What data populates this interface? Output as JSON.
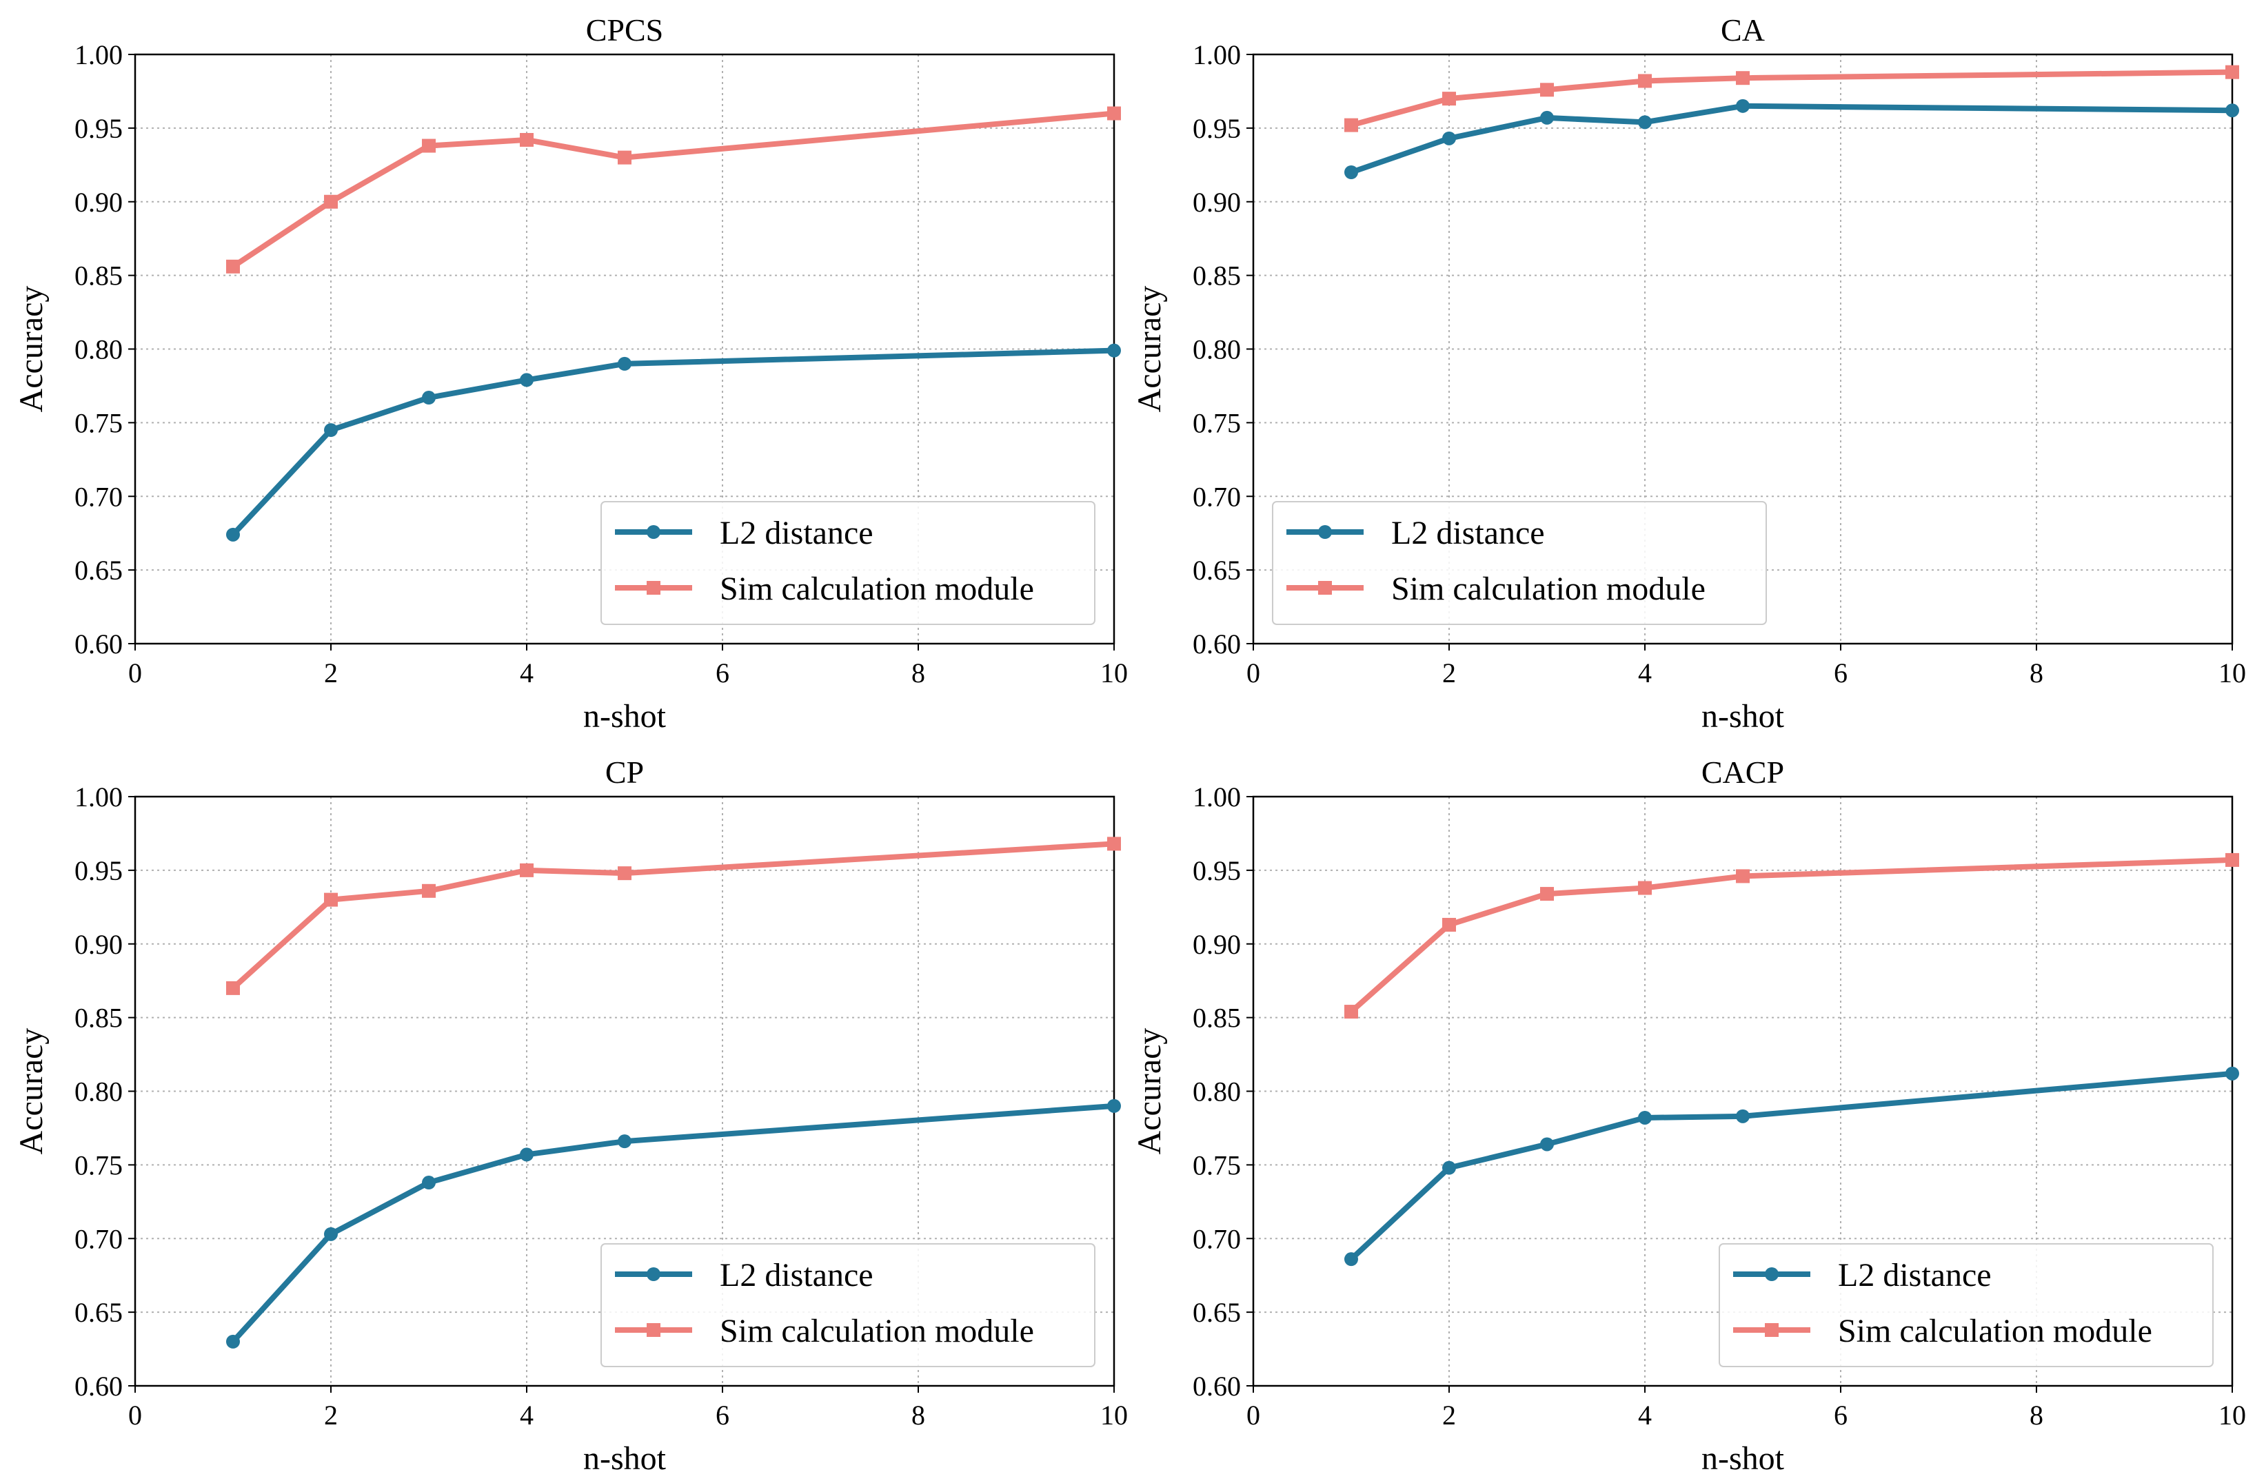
{
  "colors": {
    "l2": "#23789b",
    "sim": "#ee7f7a"
  },
  "chart_data": [
    {
      "type": "line",
      "title": "CPCS",
      "xlabel": "n-shot",
      "ylabel": "Accuracy",
      "xlim": [
        0,
        10
      ],
      "ylim": [
        0.6,
        1.0
      ],
      "xticks": [
        "0",
        "2",
        "4",
        "6",
        "8",
        "10"
      ],
      "yticks": [
        "0.60",
        "0.65",
        "0.70",
        "0.75",
        "0.80",
        "0.85",
        "0.90",
        "0.95",
        "1.00"
      ],
      "grid": true,
      "legend_position": "lower-right",
      "x": [
        1,
        2,
        3,
        4,
        5,
        10
      ],
      "series": [
        {
          "name": "L2 distance",
          "marker": "circle",
          "values": [
            0.674,
            0.745,
            0.767,
            0.779,
            0.79,
            0.799
          ]
        },
        {
          "name": "Sim calculation module",
          "marker": "square",
          "values": [
            0.856,
            0.9,
            0.938,
            0.942,
            0.93,
            0.96
          ]
        }
      ]
    },
    {
      "type": "line",
      "title": "CA",
      "xlabel": "n-shot",
      "ylabel": "Accuracy",
      "xlim": [
        0,
        10
      ],
      "ylim": [
        0.6,
        1.0
      ],
      "xticks": [
        "0",
        "2",
        "4",
        "6",
        "8",
        "10"
      ],
      "yticks": [
        "0.60",
        "0.65",
        "0.70",
        "0.75",
        "0.80",
        "0.85",
        "0.90",
        "0.95",
        "1.00"
      ],
      "grid": true,
      "legend_position": "lower-left",
      "x": [
        1,
        2,
        3,
        4,
        5,
        10
      ],
      "series": [
        {
          "name": "L2 distance",
          "marker": "circle",
          "values": [
            0.92,
            0.943,
            0.957,
            0.954,
            0.965,
            0.962
          ]
        },
        {
          "name": "Sim calculation module",
          "marker": "square",
          "values": [
            0.952,
            0.97,
            0.976,
            0.982,
            0.984,
            0.988
          ]
        }
      ]
    },
    {
      "type": "line",
      "title": "CP",
      "xlabel": "n-shot",
      "ylabel": "Accuracy",
      "xlim": [
        0,
        10
      ],
      "ylim": [
        0.6,
        1.0
      ],
      "xticks": [
        "0",
        "2",
        "4",
        "6",
        "8",
        "10"
      ],
      "yticks": [
        "0.60",
        "0.65",
        "0.70",
        "0.75",
        "0.80",
        "0.85",
        "0.90",
        "0.95",
        "1.00"
      ],
      "grid": true,
      "legend_position": "lower-right",
      "x": [
        1,
        2,
        3,
        4,
        5,
        10
      ],
      "series": [
        {
          "name": "L2 distance",
          "marker": "circle",
          "values": [
            0.63,
            0.703,
            0.738,
            0.757,
            0.766,
            0.79
          ]
        },
        {
          "name": "Sim calculation module",
          "marker": "square",
          "values": [
            0.87,
            0.93,
            0.936,
            0.95,
            0.948,
            0.968
          ]
        }
      ]
    },
    {
      "type": "line",
      "title": "CACP",
      "xlabel": "n-shot",
      "ylabel": "Accuracy",
      "xlim": [
        0,
        10
      ],
      "ylim": [
        0.6,
        1.0
      ],
      "xticks": [
        "0",
        "2",
        "4",
        "6",
        "8",
        "10"
      ],
      "yticks": [
        "0.60",
        "0.65",
        "0.70",
        "0.75",
        "0.80",
        "0.85",
        "0.90",
        "0.95",
        "1.00"
      ],
      "grid": true,
      "legend_position": "lower-right",
      "x": [
        1,
        2,
        3,
        4,
        5,
        10
      ],
      "series": [
        {
          "name": "L2 distance",
          "marker": "circle",
          "values": [
            0.686,
            0.748,
            0.764,
            0.782,
            0.783,
            0.812
          ]
        },
        {
          "name": "Sim calculation module",
          "marker": "square",
          "values": [
            0.854,
            0.913,
            0.934,
            0.938,
            0.946,
            0.957
          ]
        }
      ]
    }
  ]
}
